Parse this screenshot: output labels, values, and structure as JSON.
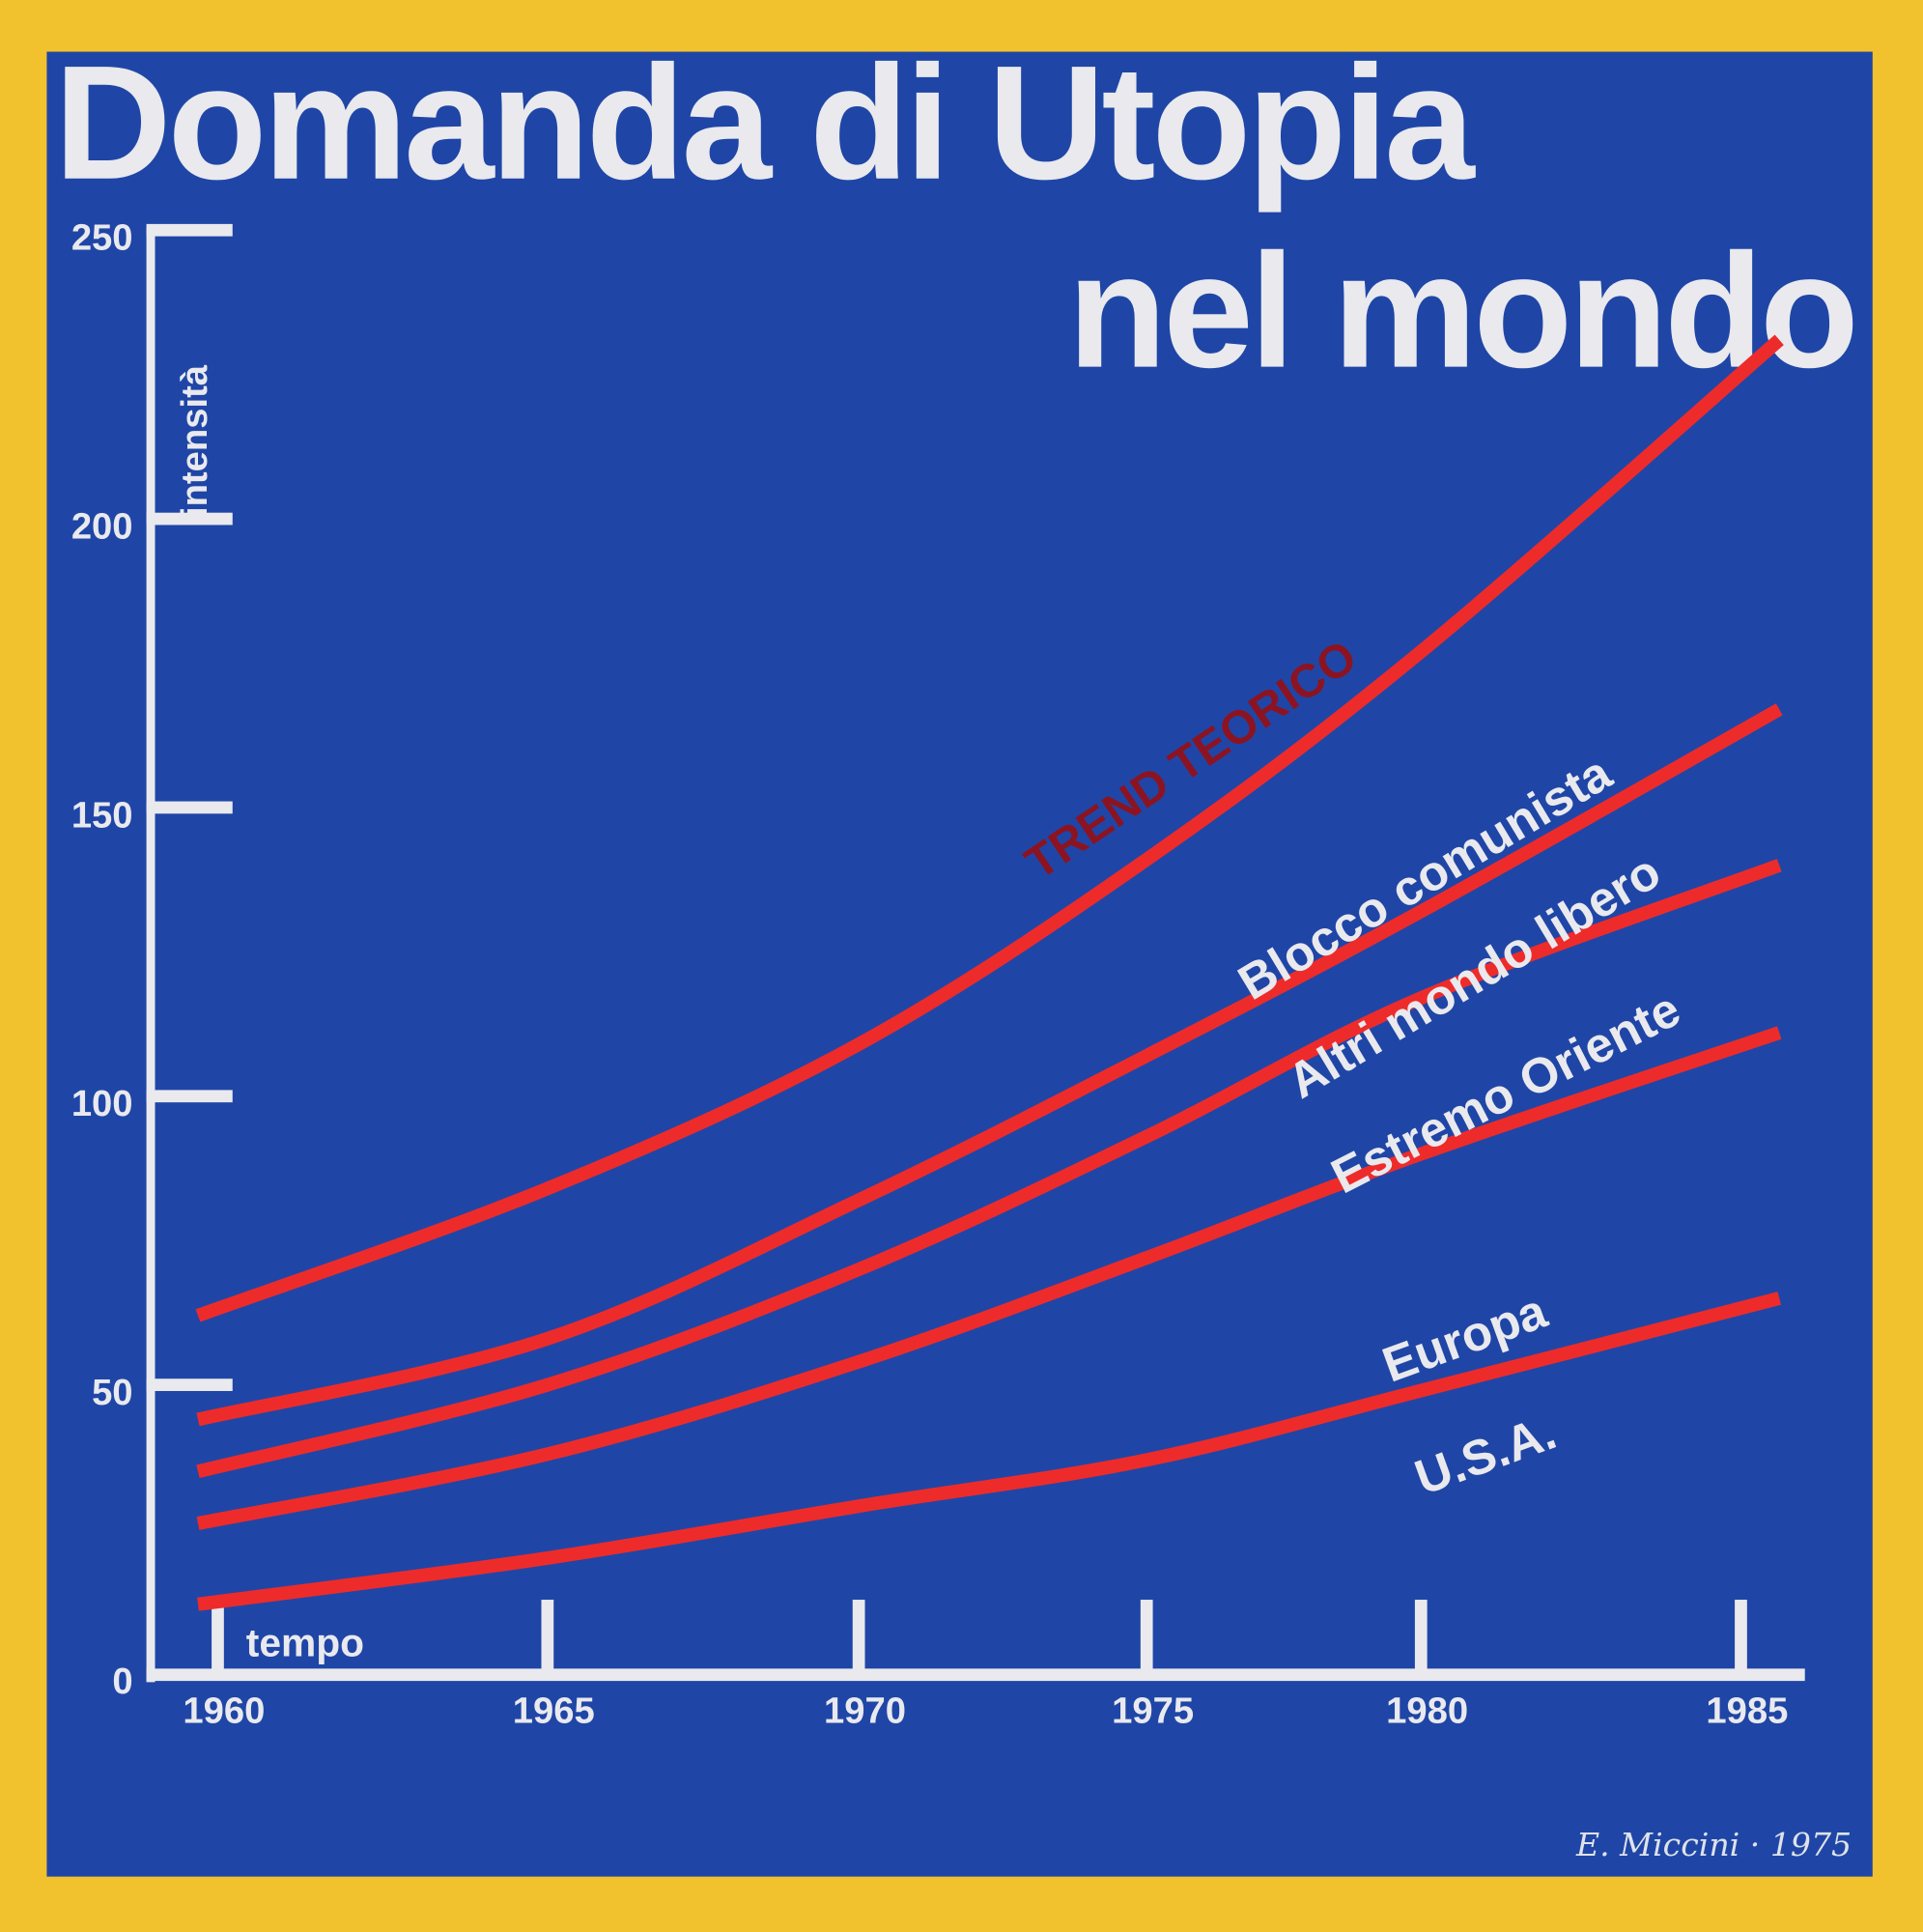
{
  "title_line1": "Domanda di Utopia",
  "title_line2": "nel mondo",
  "signature": "E. Miccini · 1975",
  "colors": {
    "background_border": "#f1c12e",
    "panel": "#1f46a6",
    "lines": "#ee2b2b",
    "trend_label": "#8c1422",
    "text": "#e9e9ee"
  },
  "chart_data": {
    "type": "line",
    "title": "Domanda di Utopia nel mondo",
    "xlabel": "tempo",
    "ylabel": "intensità",
    "xlim": [
      1960,
      1985
    ],
    "ylim": [
      0,
      250
    ],
    "x_ticks": [
      "1960",
      "1965",
      "1970",
      "1975",
      "1980",
      "1985"
    ],
    "y_ticks": [
      "0",
      "50",
      "100",
      "150",
      "200",
      "250"
    ],
    "grid": false,
    "legend": "none (labels placed along lines)",
    "x": [
      1960,
      1965,
      1970,
      1975,
      1980,
      1985.6
    ],
    "series": [
      {
        "name": "TREND TEORICO",
        "values": [
          62,
          84,
          109,
          141,
          177,
          231
        ]
      },
      {
        "name": "Blocco comunista",
        "values": [
          44,
          58,
          82,
          107,
          132,
          167
        ]
      },
      {
        "name": "Altri mondo libero",
        "values": [
          35,
          50,
          70,
          93,
          117,
          140
        ]
      },
      {
        "name": "Estremo Oriente",
        "values": [
          26,
          38,
          54,
          72,
          90,
          111
        ]
      },
      {
        "name": "Europa / U.S.A.",
        "values": [
          12,
          20,
          29,
          37,
          49,
          65
        ]
      }
    ],
    "annotations": [
      "TREND TEORICO",
      "Blocco comunista",
      "Altri mondo libero",
      "Estremo Oriente",
      "Europa",
      "U.S.A."
    ]
  }
}
